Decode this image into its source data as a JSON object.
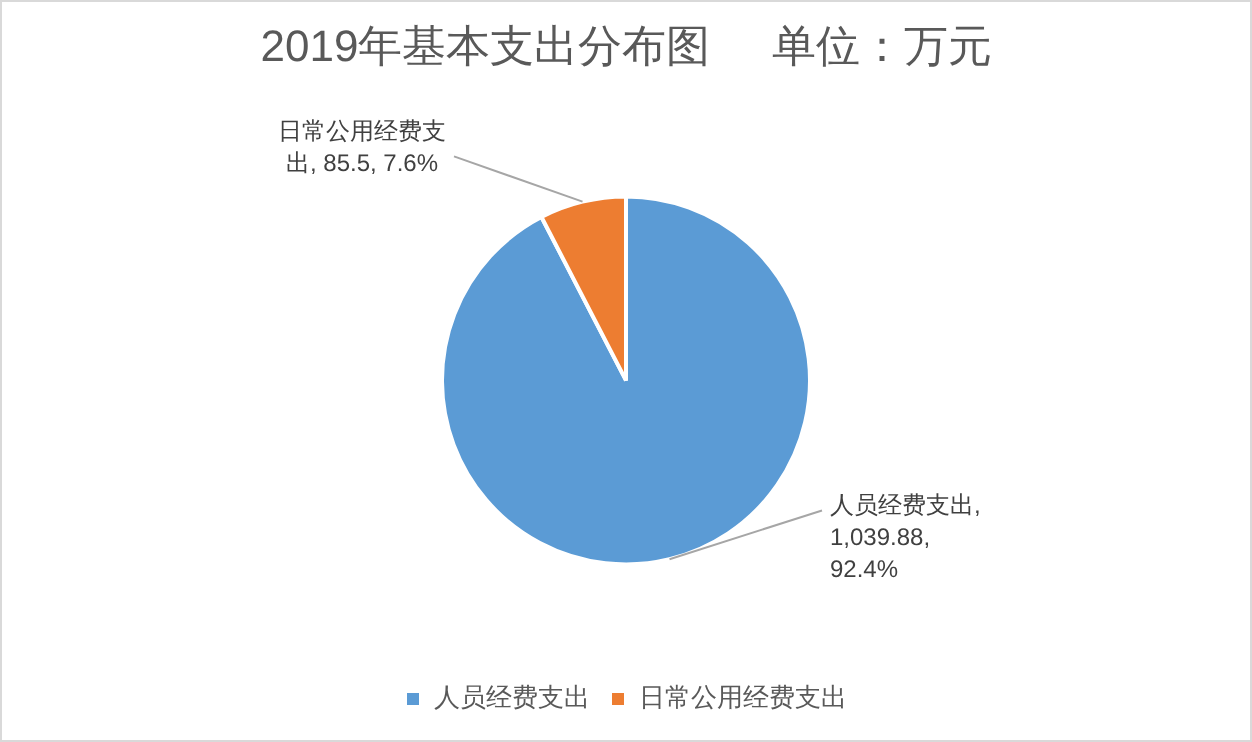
{
  "chart_data": {
    "type": "pie",
    "title": "2019年基本支出分布图     单位：万元",
    "categories": [
      "人员经费支出",
      "日常公用经费支出"
    ],
    "values": [
      1039.88,
      85.5
    ],
    "colors": [
      "#5b9bd5",
      "#ed7d31"
    ],
    "value_labels": [
      "人员经费支出, 1,039.88, 92.4%",
      "日常公用经费支出, 85.5, 7.6%"
    ],
    "legend": "bottom"
  }
}
